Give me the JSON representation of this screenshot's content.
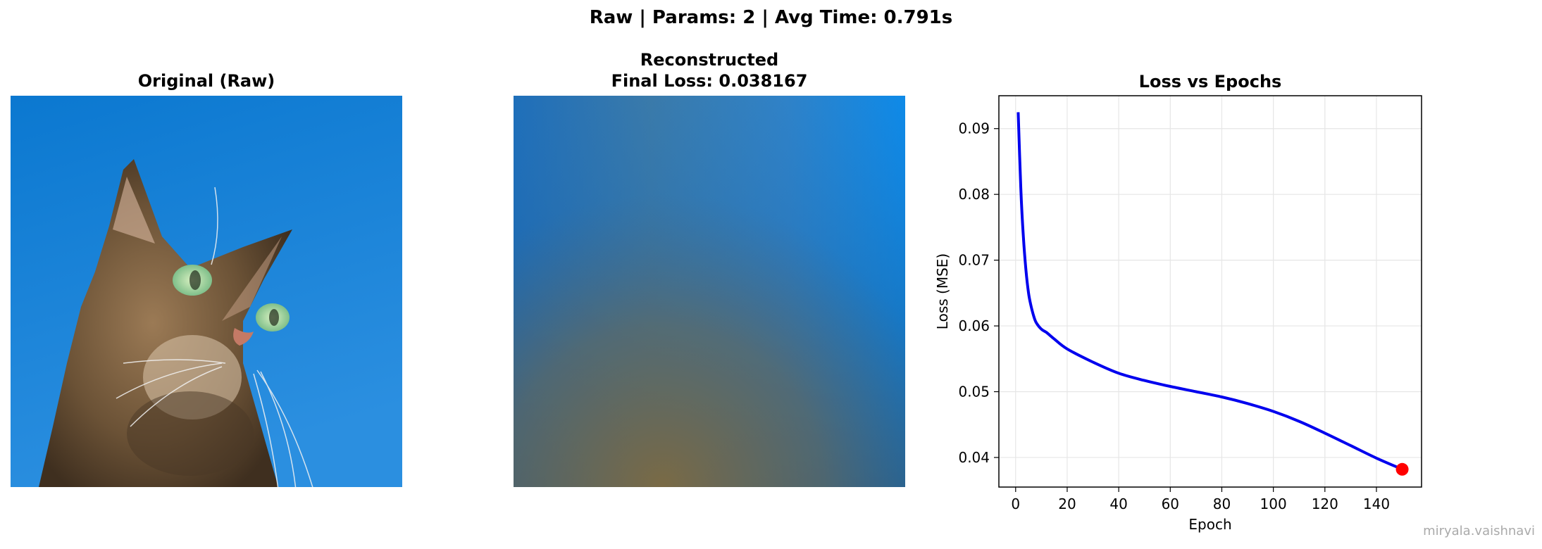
{
  "suptitle": "Raw | Params: 2 | Avg Time: 0.791s",
  "panels": {
    "original_title": "Original (Raw)",
    "reconstructed_title_line1": "Reconstructed",
    "reconstructed_title_line2": "Final Loss: 0.038167"
  },
  "watermark": "miryala.vaishnavi",
  "colors": {
    "line": "#0000ee",
    "marker": "#ff0000",
    "sky": "#1a7fd4",
    "grid": "#e6e6e6"
  },
  "chart_data": {
    "type": "line",
    "title": "Loss vs Epochs",
    "xlabel": "Epoch",
    "ylabel": "Loss (MSE)",
    "xlim": [
      -6.5,
      157.5
    ],
    "ylim": [
      0.0355,
      0.095
    ],
    "xticks": [
      0,
      20,
      40,
      60,
      80,
      100,
      120,
      140
    ],
    "yticks": [
      0.04,
      0.05,
      0.06,
      0.07,
      0.08,
      0.09
    ],
    "ytick_labels": [
      "0.04",
      "0.05",
      "0.06",
      "0.07",
      "0.08",
      "0.09"
    ],
    "grid": true,
    "series": [
      {
        "x": [
          1,
          2,
          3,
          4,
          5,
          6,
          7,
          8,
          10,
          12,
          15,
          20,
          30,
          40,
          50,
          60,
          70,
          80,
          90,
          100,
          110,
          120,
          130,
          140,
          150
        ],
        "values": [
          0.0925,
          0.081,
          0.0735,
          0.0685,
          0.065,
          0.063,
          0.0615,
          0.0605,
          0.0595,
          0.059,
          0.058,
          0.0565,
          0.0545,
          0.0528,
          0.0517,
          0.0508,
          0.05,
          0.0492,
          0.0482,
          0.047,
          0.0455,
          0.0437,
          0.0418,
          0.0399,
          0.0382
        ]
      }
    ],
    "final_point": {
      "x": 150,
      "y": 0.0382
    }
  }
}
